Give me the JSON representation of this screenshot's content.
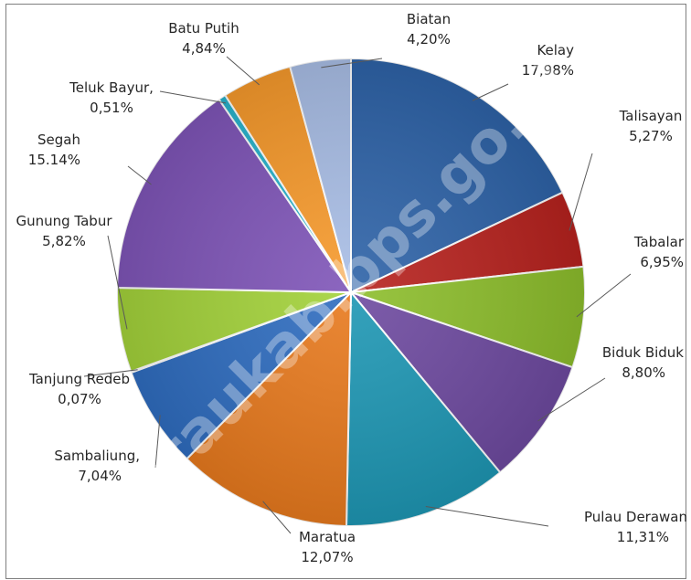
{
  "chart_data": {
    "type": "pie",
    "title": "",
    "watermark": "beraukab.bps.go.id",
    "slices": [
      {
        "label": "Kelay",
        "value": 17.98,
        "display": "17,98%",
        "color": "#2E63A8"
      },
      {
        "label": "Talisayan",
        "value": 5.27,
        "display": "5,27%",
        "color": "#B7221E"
      },
      {
        "label": "Tabalar",
        "value": 6.95,
        "display": "6,95%",
        "color": "#8DBE2C"
      },
      {
        "label": "Biduk Biduk",
        "value": 8.8,
        "display": "8,80%",
        "color": "#6E4AA0"
      },
      {
        "label": "Pulau Derawan",
        "value": 11.31,
        "display": "11,31%",
        "color": "#1E97B4"
      },
      {
        "label": "Maratua",
        "value": 12.07,
        "display": "12,07%",
        "color": "#E87A1E"
      },
      {
        "label": "Sambaliung,",
        "value": 7.04,
        "display": "7,04%",
        "color": "#2F6DC0"
      },
      {
        "label": "Tanjung Redeb",
        "value": 0.07,
        "display": "0,07%",
        "color": "#C23A2A"
      },
      {
        "label": "Gunung Tabur",
        "value": 5.82,
        "display": "5,82%",
        "color": "#A3D23A"
      },
      {
        "label": "Segah",
        "value": 15.14,
        "display": "15.14%",
        "color": "#7F55B8"
      },
      {
        "label": "Teluk Bayur,",
        "value": 0.51,
        "display": "0,51%",
        "color": "#27B3CC"
      },
      {
        "label": "Batu Putih",
        "value": 4.84,
        "display": "4,84%",
        "color": "#F79A2C"
      },
      {
        "label": "Biatan",
        "value": 4.2,
        "display": "4,20%",
        "color": "#A9BEE6"
      }
    ]
  }
}
